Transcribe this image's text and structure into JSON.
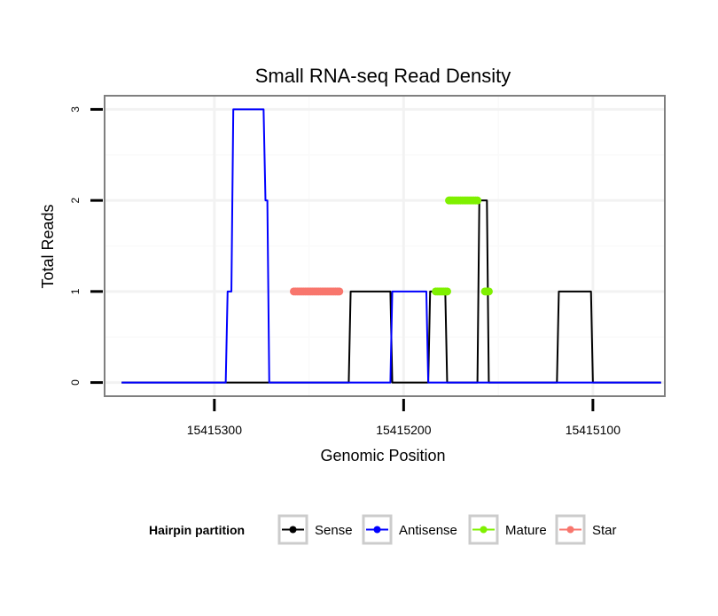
{
  "chart_data": {
    "type": "line",
    "title": "Small RNA-seq Read Density",
    "xlabel": "Genomic Position",
    "ylabel": "Total Reads",
    "x_reversed": true,
    "xlim": [
      15415358,
      15415062
    ],
    "ylim": [
      -0.15,
      3.15
    ],
    "xticks": [
      15415300,
      15415200,
      15415100
    ],
    "xtick_labels": [
      "15415300",
      "15415200",
      "15415100"
    ],
    "yticks": [
      0,
      1,
      2,
      3
    ],
    "ytick_labels": [
      "0",
      "1",
      "2",
      "3"
    ],
    "grid": true,
    "legend": {
      "title": "Hairpin partition",
      "position": "bottom",
      "entries": [
        "Sense",
        "Antisense",
        "Mature",
        "Star"
      ]
    },
    "series": [
      {
        "name": "Sense",
        "color": "#000000",
        "style": "line",
        "x": [
          15415349,
          15415229,
          15415228,
          15415207,
          15415206,
          15415187,
          15415186,
          15415178,
          15415177,
          15415161,
          15415160,
          15415156,
          15415155,
          15415119,
          15415118,
          15415101,
          15415100,
          15415064
        ],
        "y": [
          0,
          0,
          1,
          1,
          0,
          0,
          1,
          1,
          0,
          0,
          2,
          2,
          0,
          0,
          1,
          1,
          0,
          0
        ]
      },
      {
        "name": "Antisense",
        "color": "#0000ff",
        "style": "line",
        "x": [
          15415349,
          15415294,
          15415293,
          15415291,
          15415290,
          15415274,
          15415273,
          15415272,
          15415271,
          15415270,
          15415207,
          15415206,
          15415188,
          15415187,
          15415100,
          15415064
        ],
        "y": [
          0,
          0,
          1,
          1,
          3,
          3,
          2,
          2,
          0,
          0,
          0,
          1,
          1,
          0,
          0,
          0
        ]
      },
      {
        "name": "Mature",
        "color": "#7ff000",
        "style": "points",
        "x": [
          15415183,
          15415182,
          15415181,
          15415180,
          15415179,
          15415178,
          15415177,
          15415176,
          15415175,
          15415174,
          15415173,
          15415172,
          15415171,
          15415170,
          15415169,
          15415168,
          15415167,
          15415166,
          15415165,
          15415164,
          15415163,
          15415162,
          15415161,
          15415157,
          15415156,
          15415155
        ],
        "y": [
          1,
          1,
          1,
          1,
          1,
          1,
          1,
          2,
          2,
          2,
          2,
          2,
          2,
          2,
          2,
          2,
          2,
          2,
          2,
          2,
          2,
          2,
          2,
          1,
          1,
          1
        ]
      },
      {
        "name": "Star",
        "color": "#f8766d",
        "style": "points",
        "x": [
          15415258,
          15415257,
          15415256,
          15415255,
          15415254,
          15415253,
          15415252,
          15415251,
          15415250,
          15415249,
          15415248,
          15415247,
          15415246,
          15415245,
          15415244,
          15415243,
          15415242,
          15415241,
          15415240,
          15415239,
          15415238,
          15415237,
          15415236,
          15415235,
          15415234
        ],
        "y": [
          1,
          1,
          1,
          1,
          1,
          1,
          1,
          1,
          1,
          1,
          1,
          1,
          1,
          1,
          1,
          1,
          1,
          1,
          1,
          1,
          1,
          1,
          1,
          1,
          1
        ]
      }
    ]
  },
  "colors": {
    "panel_border": "#7f7f7f",
    "grid_major": "#f2f2f2",
    "grid_minor": "#fafafa",
    "legend_key_border": "#cccccc"
  }
}
